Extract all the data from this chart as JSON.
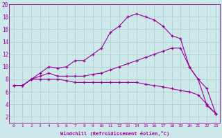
{
  "xlabel": "Windchill (Refroidissement éolien,°C)",
  "background_color": "#cce8e8",
  "grid_color": "#aacccc",
  "line_color": "#990099",
  "xlim": [
    -0.5,
    23.5
  ],
  "ylim": [
    1,
    20
  ],
  "xticks": [
    0,
    1,
    2,
    3,
    4,
    5,
    6,
    7,
    8,
    9,
    10,
    11,
    12,
    13,
    14,
    15,
    16,
    17,
    18,
    19,
    20,
    21,
    22,
    23
  ],
  "yticks": [
    2,
    4,
    6,
    8,
    10,
    12,
    14,
    16,
    18,
    20
  ],
  "series": [
    {
      "x": [
        0,
        1,
        2,
        3,
        4,
        5,
        6,
        7,
        8,
        9,
        10,
        11,
        12,
        13,
        14,
        15,
        16,
        17,
        18,
        19,
        20,
        21,
        22,
        23
      ],
      "y": [
        7.0,
        7.0,
        8.0,
        9.0,
        10.0,
        9.8,
        10.0,
        11.0,
        11.0,
        12.0,
        13.0,
        15.5,
        16.5,
        18.0,
        18.5,
        18.0,
        17.5,
        16.5,
        15.0,
        14.5,
        10.0,
        8.0,
        3.8,
        2.5
      ]
    },
    {
      "x": [
        0,
        1,
        2,
        3,
        4,
        5,
        6,
        7,
        8,
        9,
        10,
        11,
        12,
        13,
        14,
        15,
        16,
        17,
        18,
        19,
        20,
        21,
        22,
        23
      ],
      "y": [
        7.0,
        7.0,
        8.0,
        8.5,
        9.0,
        8.5,
        8.5,
        8.5,
        8.5,
        8.8,
        9.0,
        9.5,
        10.0,
        10.5,
        11.0,
        11.5,
        12.0,
        12.5,
        13.0,
        13.0,
        10.0,
        8.0,
        6.5,
        2.5
      ]
    },
    {
      "x": [
        0,
        1,
        2,
        3,
        4,
        5,
        6,
        7,
        8,
        9,
        10,
        11,
        12,
        13,
        14,
        15,
        16,
        17,
        18,
        19,
        20,
        21,
        22,
        23
      ],
      "y": [
        7.0,
        7.0,
        8.0,
        8.0,
        8.0,
        8.0,
        7.8,
        7.5,
        7.5,
        7.5,
        7.5,
        7.5,
        7.5,
        7.5,
        7.5,
        7.2,
        7.0,
        6.8,
        6.5,
        6.2,
        6.0,
        5.5,
        4.0,
        2.5
      ]
    }
  ]
}
